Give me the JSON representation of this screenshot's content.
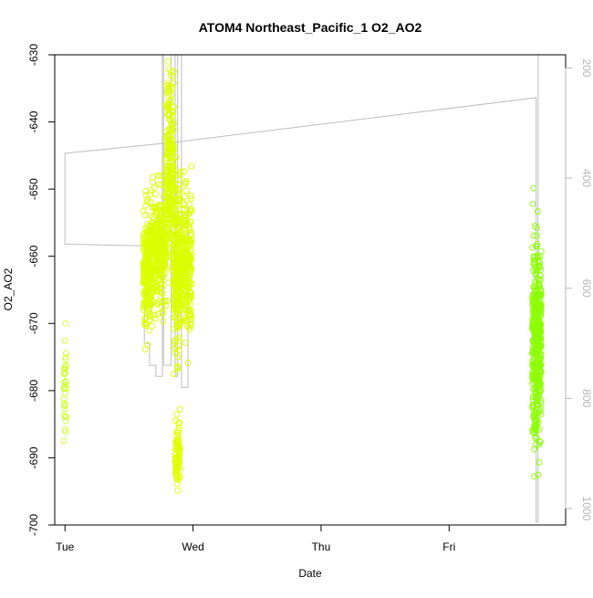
{
  "chart_data": {
    "type": "scatter",
    "title": "ATOM4 Northeast_Pacific_1 O2_AO2",
    "xlabel": "Date",
    "ylabel": "O2_AO2",
    "x_ticks": [
      "Tue",
      "Wed",
      "Thu",
      "Fri"
    ],
    "x_tick_values": [
      0,
      1,
      2,
      3
    ],
    "xlim": [
      -0.08,
      3.91
    ],
    "ylim": [
      -700,
      -630
    ],
    "y_ticks": [
      -700,
      -690,
      -680,
      -670,
      -660,
      -650,
      -640,
      -630
    ],
    "y2_ticks": [
      200,
      400,
      600,
      800,
      1000
    ],
    "y2lim": [
      1030,
      176
    ],
    "grid": false,
    "colors": {
      "points_yellow": "#dcff00",
      "points_green": "#8cff00",
      "secondary_line": "#bdbdbd",
      "secondary_axis": "#b5b5b5"
    },
    "clusters": [
      {
        "x_range": [
          -0.01,
          0.01
        ],
        "y_center": -679,
        "y_spread": 4.5,
        "count": 35,
        "color": "#d0ff30",
        "y_min": -687.5,
        "y_max": -670
      },
      {
        "x_range": [
          0.61,
          0.68
        ],
        "y_center": -662,
        "y_spread": 4.5,
        "count": 260,
        "color": "#dcff00",
        "y_min": -685,
        "y_max": -647
      },
      {
        "x_range": [
          0.68,
          0.79
        ],
        "y_center": -659,
        "y_spread": 4.0,
        "count": 300,
        "color": "#dcff00",
        "y_min": -676,
        "y_max": -648
      },
      {
        "x_range": [
          0.79,
          0.85
        ],
        "y_center": -648,
        "y_spread": 7.0,
        "count": 260,
        "color": "#dcff00",
        "y_min": -676,
        "y_max": -631
      },
      {
        "x_range": [
          0.85,
          0.9
        ],
        "y_center": -662,
        "y_spread": 6.0,
        "count": 230,
        "color": "#dcff00",
        "y_min": -684,
        "y_max": -640
      },
      {
        "x_range": [
          0.86,
          0.9
        ],
        "y_center": -689,
        "y_spread": 2.5,
        "count": 80,
        "color": "#e0ff00",
        "y_min": -697.5,
        "y_max": -682
      },
      {
        "x_range": [
          0.9,
          0.99
        ],
        "y_center": -661,
        "y_spread": 5.5,
        "count": 260,
        "color": "#dcff00",
        "y_min": -686,
        "y_max": -643
      },
      {
        "x_range": [
          3.65,
          3.72
        ],
        "y_center": -673,
        "y_spread": 7.0,
        "count": 420,
        "color": "#8cff00",
        "y_min": -694,
        "y_max": -647
      }
    ],
    "secondary_series": {
      "type": "line",
      "points": [
        [
          0.0,
          520
        ],
        [
          0.0,
          355
        ],
        [
          0.85,
          335
        ],
        [
          3.68,
          254
        ],
        [
          3.68,
          1025
        ],
        [
          3.695,
          1025
        ],
        [
          3.695,
          176
        ]
      ],
      "step_points": [
        [
          0.0,
          520
        ],
        [
          0.62,
          523
        ],
        [
          0.62,
          700
        ],
        [
          0.66,
          700
        ],
        [
          0.66,
          740
        ],
        [
          0.71,
          740
        ],
        [
          0.71,
          760
        ],
        [
          0.76,
          760
        ],
        [
          0.76,
          176
        ],
        [
          0.77,
          176
        ],
        [
          0.77,
          740
        ],
        [
          0.83,
          740
        ],
        [
          0.83,
          176
        ],
        [
          0.86,
          176
        ],
        [
          0.86,
          760
        ],
        [
          0.88,
          760
        ],
        [
          0.88,
          176
        ],
        [
          0.91,
          176
        ],
        [
          0.91,
          780
        ],
        [
          0.96,
          780
        ],
        [
          0.96,
          450
        ]
      ]
    }
  }
}
